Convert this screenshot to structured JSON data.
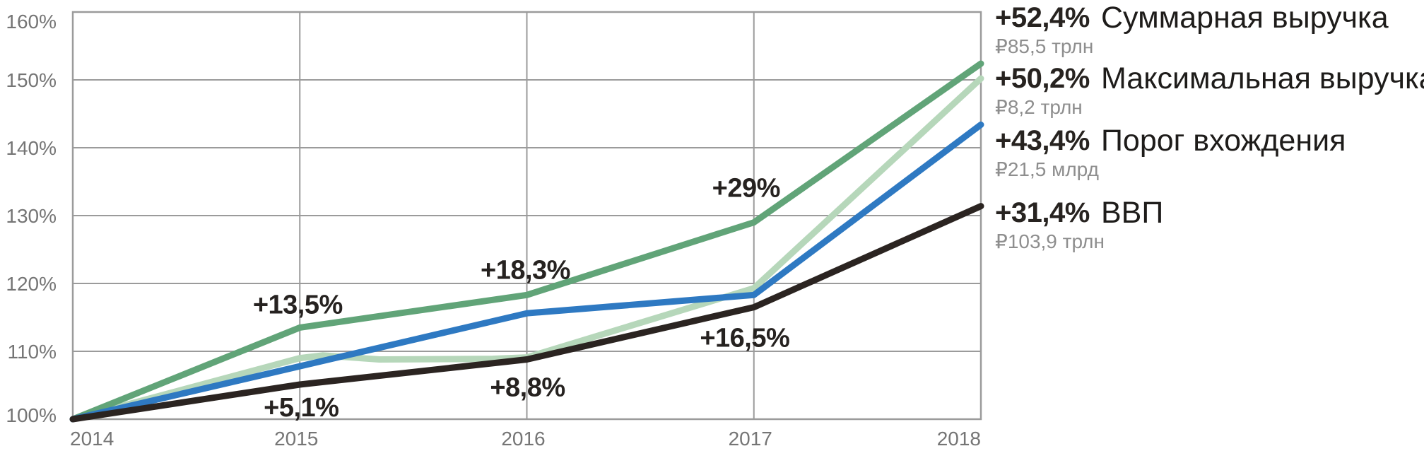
{
  "chart_data": {
    "type": "line",
    "title": "",
    "xlabel": "",
    "ylabel": "",
    "x_ticks": [
      "2014",
      "2015",
      "2016",
      "2017",
      "2018"
    ],
    "y_ticks": [
      "160%",
      "150%",
      "140%",
      "130%",
      "120%",
      "110%",
      "100%"
    ],
    "y_tick_values": [
      160,
      150,
      140,
      130,
      120,
      110,
      100
    ],
    "x_range": [
      2014,
      2018
    ],
    "y_range": [
      100,
      160
    ],
    "grid": true,
    "legend_position": "right",
    "series": [
      {
        "key": "max-revenue",
        "name": "Максимальная выручка",
        "color": "#b6d7ba",
        "stroke_width": 9,
        "x": [
          2014,
          2015,
          2015.1,
          2015.35,
          2015.85,
          2016,
          2017,
          2018
        ],
        "values": [
          100,
          109.0,
          109.4,
          108.8,
          108.9,
          109.1,
          119.3,
          150.2
        ]
      },
      {
        "key": "total-revenue",
        "name": "Суммарная выручка",
        "color": "#61a478",
        "stroke_width": 9,
        "x": [
          2014,
          2015,
          2016,
          2017,
          2018
        ],
        "values": [
          100,
          113.5,
          118.3,
          129,
          152.4
        ]
      },
      {
        "key": "entry-threshold",
        "name": "Порог вхождения",
        "color": "#2e79c2",
        "stroke_width": 9,
        "x": [
          2014,
          2015,
          2016,
          2017,
          2018
        ],
        "values": [
          100,
          107.8,
          115.6,
          118.3,
          143.4
        ]
      },
      {
        "key": "gdp",
        "name": "ВВП",
        "color": "#2b2421",
        "stroke_width": 9,
        "x": [
          2014,
          2015,
          2016,
          2017,
          2018
        ],
        "values": [
          100,
          105.1,
          108.8,
          116.5,
          131.4
        ]
      }
    ],
    "annotations": [
      {
        "label": "+13,5%",
        "x": 2015,
        "y": 113.5,
        "placement": "above"
      },
      {
        "label": "+18,3%",
        "x": 2016,
        "y": 118.3,
        "placement": "above"
      },
      {
        "label": "+29%",
        "x": 2017,
        "y": 129,
        "placement": "above"
      },
      {
        "label": "+5,1%",
        "x": 2015,
        "y": 105.1,
        "placement": "below"
      },
      {
        "label": "+8,8%",
        "x": 2016,
        "y": 108.8,
        "placement": "below"
      },
      {
        "label": "+16,5%",
        "x": 2017,
        "y": 116.5,
        "placement": "below"
      }
    ]
  },
  "legend": {
    "entries": [
      {
        "change": "+52,4%",
        "amount": "₽85,5 трлн",
        "name": "Суммарная выручка"
      },
      {
        "change": "+50,2%",
        "amount": "₽8,2 трлн",
        "name": "Максимальная выручка"
      },
      {
        "change": "+43,4%",
        "amount": "₽21,5 млрд",
        "name": "Порог вхождения"
      },
      {
        "change": "+31,4%",
        "amount": "₽103,9 трлн",
        "name": "ВВП"
      }
    ]
  },
  "colors": {
    "background": "#ffffff",
    "grid": "#9b9b9b",
    "axis_text": "#757575",
    "annotation_text": "#262220",
    "legend_change_text": "#272320",
    "legend_name_text": "#1e1c1a",
    "legend_amount_text": "#8e8e8e"
  }
}
